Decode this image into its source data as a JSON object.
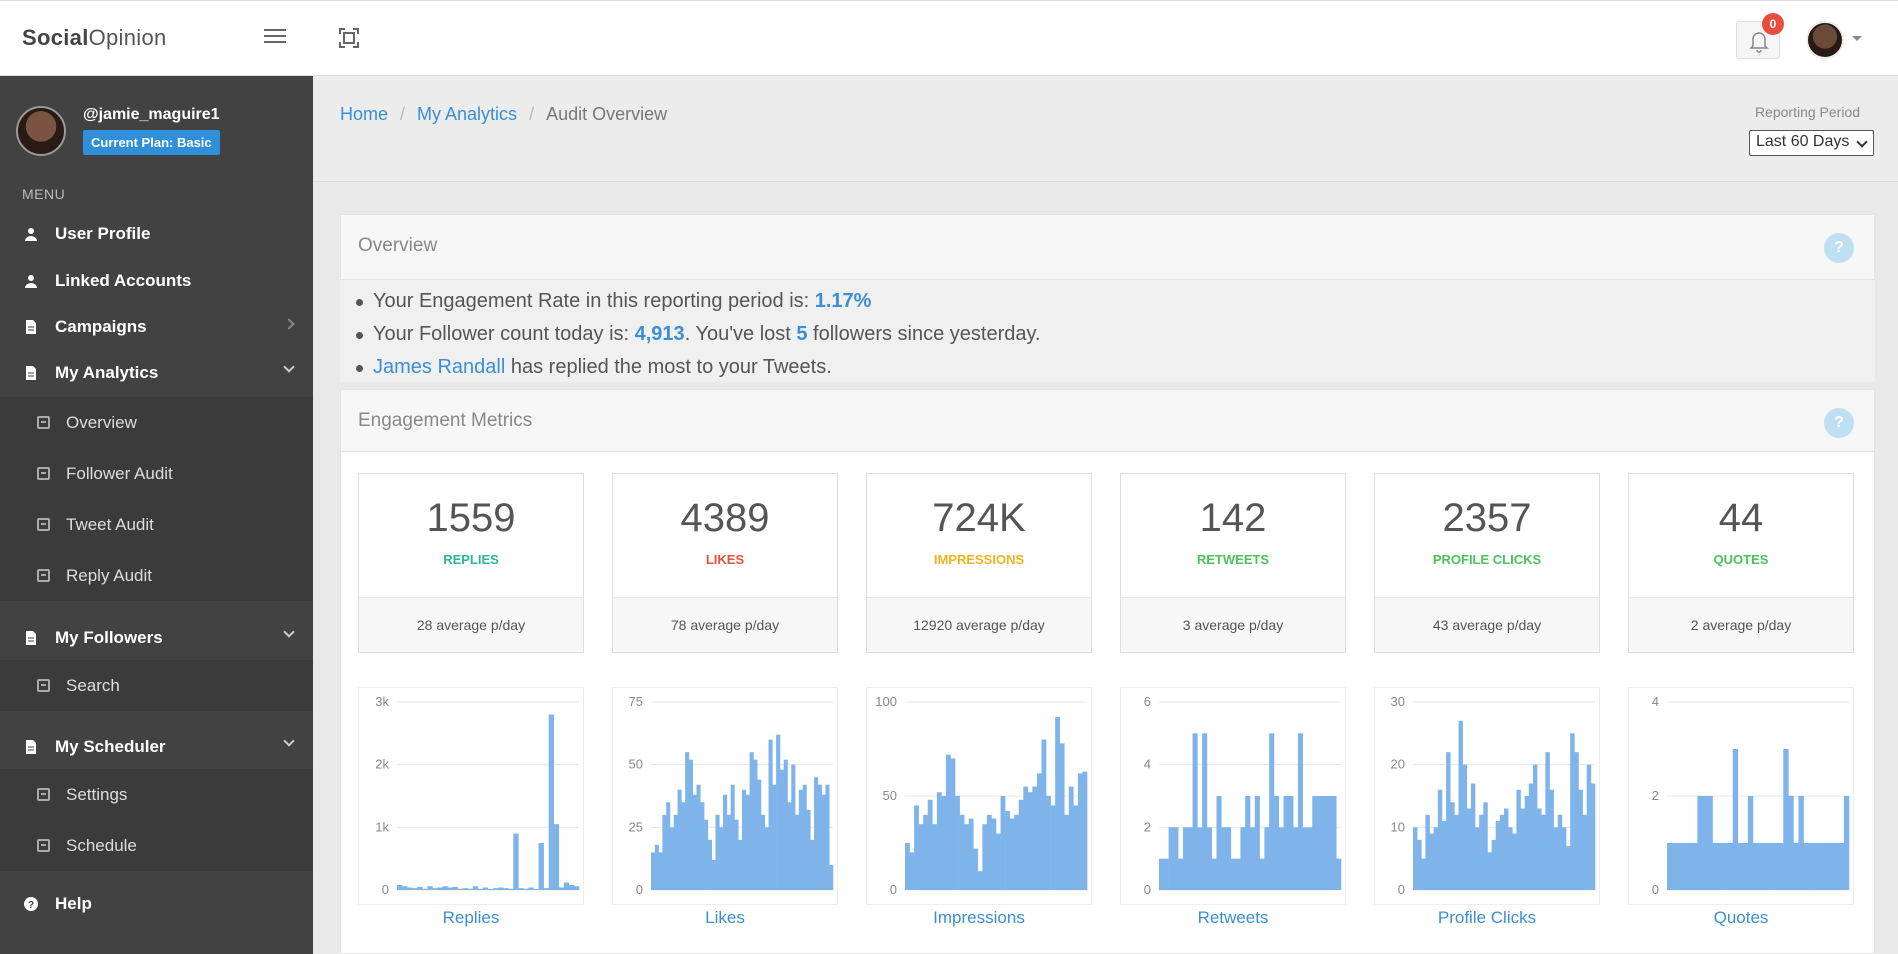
{
  "brand": {
    "bold": "Social",
    "rest": "Opinion"
  },
  "notifications": {
    "count": "0"
  },
  "sidebar": {
    "handle": "@jamie_maguire1",
    "plan": "Current Plan: Basic",
    "menu_label": "MENU",
    "items": [
      {
        "label": "User Profile"
      },
      {
        "label": "Linked Accounts"
      },
      {
        "label": "Campaigns"
      },
      {
        "label": "My Analytics"
      },
      {
        "label": "My Followers"
      },
      {
        "label": "My Scheduler"
      },
      {
        "label": "Help"
      }
    ],
    "analytics_sub": [
      {
        "label": "Overview"
      },
      {
        "label": "Follower Audit"
      },
      {
        "label": "Tweet Audit"
      },
      {
        "label": "Reply Audit"
      }
    ],
    "followers_sub": [
      {
        "label": "Search"
      }
    ],
    "scheduler_sub": [
      {
        "label": "Settings"
      },
      {
        "label": "Schedule"
      }
    ]
  },
  "breadcrumb": {
    "home": "Home",
    "analytics": "My Analytics",
    "current": "Audit Overview",
    "sep": "/"
  },
  "reporting": {
    "label": "Reporting Period",
    "selected": "Last 60 Days"
  },
  "overview": {
    "title": "Overview",
    "help": "?",
    "line1_prefix": "Your Engagement Rate in this reporting period is: ",
    "engagement_rate": "1.17%",
    "line2_prefix": "Your Follower count today is: ",
    "follower_count": "4,913",
    "line2_mid": ". You've lost ",
    "followers_lost": "5",
    "line2_suffix": " followers since yesterday.",
    "top_replier": "James Randall",
    "line3_suffix": " has replied the most to your Tweets."
  },
  "engagement": {
    "title": "Engagement Metrics",
    "help": "?",
    "metrics": [
      {
        "value": "1559",
        "name": "REPLIES",
        "avg": "28 average p/day",
        "color": "#2bb5a0"
      },
      {
        "value": "4389",
        "name": "LIKES",
        "avg": "78 average p/day",
        "color": "#e8513d"
      },
      {
        "value": "724K",
        "name": "IMPRESSIONS",
        "avg": "12920 average p/day",
        "color": "#f2b21d"
      },
      {
        "value": "142",
        "name": "RETWEETS",
        "avg": "3 average p/day",
        "color": "#4cc25a"
      },
      {
        "value": "2357",
        "name": "PROFILE CLICKS",
        "avg": "43 average p/day",
        "color": "#4cc25a"
      },
      {
        "value": "44",
        "name": "QUOTES",
        "avg": "2 average p/day",
        "color": "#4cc25a"
      }
    ]
  },
  "chart_data": [
    {
      "type": "bar",
      "title": "Replies",
      "ytick_labels": [
        "0",
        "1k",
        "2k",
        "3k"
      ],
      "ylim": [
        0,
        3000
      ],
      "values": [
        80,
        60,
        40,
        30,
        50,
        20,
        60,
        30,
        40,
        60,
        40,
        50,
        20,
        30,
        20,
        60,
        20,
        40,
        10,
        30,
        40,
        30,
        20,
        900,
        30,
        20,
        40,
        10,
        750,
        30,
        2800,
        1050,
        40,
        120,
        80,
        60
      ]
    },
    {
      "type": "bar",
      "title": "Likes",
      "ytick_labels": [
        "0",
        "25",
        "50",
        "75"
      ],
      "ylim": [
        0,
        75
      ],
      "values": [
        15,
        18,
        15,
        30,
        35,
        25,
        30,
        40,
        35,
        55,
        52,
        38,
        42,
        35,
        28,
        20,
        12,
        30,
        25,
        38,
        30,
        42,
        28,
        20,
        40,
        38,
        55,
        52,
        44,
        30,
        25,
        60,
        42,
        62,
        48,
        52,
        35,
        50,
        30,
        40,
        42,
        32,
        20,
        45,
        42,
        38,
        42,
        10
      ]
    },
    {
      "type": "bar",
      "title": "Impressions",
      "ytick_labels": [
        "0",
        "50",
        "100"
      ],
      "ylim": [
        0,
        100
      ],
      "values": [
        25,
        20,
        45,
        35,
        40,
        48,
        35,
        52,
        50,
        72,
        70,
        50,
        40,
        35,
        38,
        22,
        10,
        35,
        40,
        38,
        30,
        50,
        42,
        38,
        40,
        48,
        55,
        52,
        55,
        62,
        80,
        50,
        45,
        92,
        78,
        40,
        55,
        45,
        62,
        63
      ]
    },
    {
      "type": "bar",
      "title": "Retweets",
      "ytick_labels": [
        "0",
        "2",
        "4",
        "6"
      ],
      "ylim": [
        0,
        6
      ],
      "values": [
        1,
        1,
        2,
        2,
        1,
        2,
        2,
        5,
        2,
        5,
        2,
        1,
        3,
        2,
        2,
        1,
        1,
        2,
        3,
        2,
        3,
        1,
        2,
        5,
        3,
        2,
        3,
        3,
        2,
        5,
        2,
        2,
        3,
        3,
        3,
        3,
        3,
        1
      ]
    },
    {
      "type": "bar",
      "title": "Profile Clicks",
      "ytick_labels": [
        "0",
        "10",
        "20",
        "30"
      ],
      "ylim": [
        0,
        30
      ],
      "values": [
        10,
        8,
        5,
        12,
        9,
        10,
        16,
        11,
        22,
        14,
        12,
        27,
        20,
        13,
        17,
        10,
        12,
        14,
        6,
        8,
        11,
        12,
        13,
        10,
        9,
        16,
        13,
        15,
        17,
        20,
        13,
        12,
        22,
        16,
        10,
        12,
        10,
        7,
        25,
        22,
        16,
        12,
        20,
        17
      ]
    },
    {
      "type": "bar",
      "title": "Quotes",
      "ytick_labels": [
        "0",
        "2",
        "4"
      ],
      "ylim": [
        0,
        4
      ],
      "values": [
        1,
        1,
        1,
        1,
        1,
        1,
        2,
        2,
        2,
        1,
        1,
        1,
        1,
        3,
        1,
        1,
        2,
        1,
        1,
        1,
        1,
        1,
        1,
        3,
        2,
        1,
        2,
        1,
        1,
        1,
        1,
        1,
        1,
        1,
        1,
        2
      ]
    }
  ]
}
